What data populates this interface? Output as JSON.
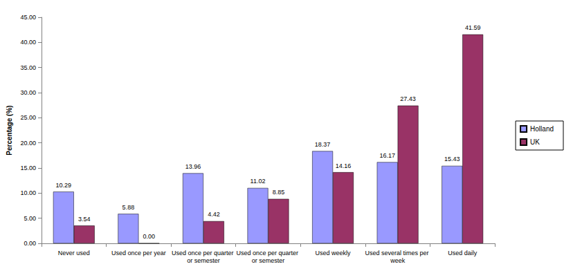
{
  "chart_data": {
    "type": "bar",
    "y_label": "Percentage (%)",
    "categories": [
      "Never used",
      "Used once per year",
      "Used once per quarter or semester",
      "Used once per quarter or semester",
      "Used weekly",
      "Used several times per week",
      "Used daily"
    ],
    "series": [
      {
        "name": "Holland",
        "color": "#9999ff",
        "values": [
          10.29,
          5.88,
          13.96,
          11.02,
          18.37,
          16.17,
          15.43
        ],
        "value_labels": [
          "10.29",
          "5.88",
          "13.96",
          "11.02",
          "18.37",
          "16.17",
          "15.43"
        ]
      },
      {
        "name": "UK",
        "color": "#993366",
        "values": [
          3.54,
          0,
          4.42,
          8.85,
          14.16,
          27.43,
          41.59
        ],
        "value_labels": [
          "3.54",
          "0.00",
          "4.42",
          "8.85",
          "14.16",
          "27.43",
          "41.59"
        ]
      }
    ],
    "ylim": [
      0,
      45
    ],
    "yticks": [
      {
        "value": 0,
        "label": "0.00"
      },
      {
        "value": 5,
        "label": "5.00"
      },
      {
        "value": 10,
        "label": "10.00"
      },
      {
        "value": 15,
        "label": "15.00"
      },
      {
        "value": 20,
        "label": "20.00"
      },
      {
        "value": 25,
        "label": "25.00"
      },
      {
        "value": 30,
        "label": "30.00"
      },
      {
        "value": 35,
        "label": "35.00"
      },
      {
        "value": 40,
        "label": "40.00"
      },
      {
        "value": 45,
        "label": "45.00"
      }
    ],
    "grid": false,
    "legend": "right",
    "data_labels": true
  }
}
